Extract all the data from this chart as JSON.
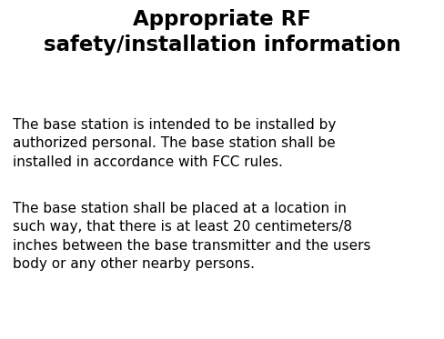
{
  "title_line1": "Appropriate RF",
  "title_line2": "safety/installation information",
  "paragraph1_line1": "The base station is intended to be installed by",
  "paragraph1_line2": "authorized personal. The base station shall be",
  "paragraph1_line3": "installed in accordance with FCC rules.",
  "paragraph2_line1": "The base station shall be placed at a location in",
  "paragraph2_line2": "such way, that there is at least 20 centimeters/8",
  "paragraph2_line3": "inches between the base transmitter and the users",
  "paragraph2_line4": "body or any other nearby persons.",
  "background_color": "#ffffff",
  "title_color": "#000000",
  "text_color": "#000000",
  "title_fontsize": 16.5,
  "body_fontsize": 11.0,
  "fig_width": 4.88,
  "fig_height": 3.73,
  "dpi": 100
}
